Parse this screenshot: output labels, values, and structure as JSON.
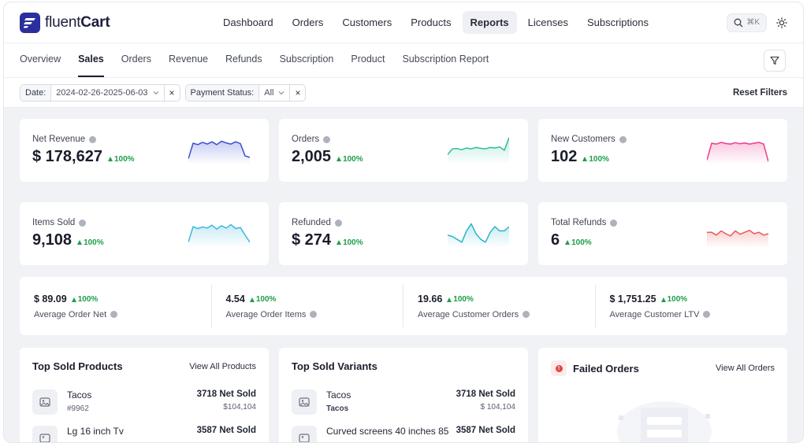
{
  "app": {
    "logo_text_regular": "fluent",
    "logo_text_bold": "Cart"
  },
  "nav": {
    "items": [
      {
        "label": "Dashboard",
        "active": false
      },
      {
        "label": "Orders",
        "active": false
      },
      {
        "label": "Customers",
        "active": false
      },
      {
        "label": "Products",
        "active": false
      },
      {
        "label": "Reports",
        "active": true
      },
      {
        "label": "Licenses",
        "active": false
      },
      {
        "label": "Subscriptions",
        "active": false
      }
    ],
    "search_shortcut": "⌘K"
  },
  "subnav": {
    "items": [
      {
        "label": "Overview",
        "active": false
      },
      {
        "label": "Sales",
        "active": true
      },
      {
        "label": "Orders",
        "active": false
      },
      {
        "label": "Revenue",
        "active": false
      },
      {
        "label": "Refunds",
        "active": false
      },
      {
        "label": "Subscription",
        "active": false
      },
      {
        "label": "Product",
        "active": false
      },
      {
        "label": "Subscription Report",
        "active": false
      }
    ]
  },
  "filters": {
    "date_label": "Date:",
    "date_value": "2024-02-26-2025-06-03",
    "payment_label": "Payment Status:",
    "payment_value": "All",
    "reset_label": "Reset Filters"
  },
  "kpis": [
    {
      "label": "Net Revenue",
      "value": "$ 178,627",
      "delta": "100%",
      "color": "#3b4fd1",
      "spark": [
        0.2,
        0.75,
        0.7,
        0.78,
        0.72,
        0.8,
        0.7,
        0.82,
        0.76,
        0.72,
        0.8,
        0.74,
        0.3,
        0.25
      ]
    },
    {
      "label": "Orders",
      "value": "2,005",
      "delta": "100%",
      "color": "#2bbf9a",
      "spark": [
        0.35,
        0.55,
        0.56,
        0.52,
        0.58,
        0.55,
        0.6,
        0.57,
        0.55,
        0.6,
        0.58,
        0.62,
        0.5,
        0.95
      ]
    },
    {
      "label": "New Customers",
      "value": "102",
      "delta": "100%",
      "color": "#e83e8c",
      "spark": [
        0.15,
        0.75,
        0.72,
        0.78,
        0.74,
        0.72,
        0.77,
        0.73,
        0.76,
        0.72,
        0.75,
        0.78,
        0.72,
        0.1
      ]
    },
    {
      "label": "Items Sold",
      "value": "9,108",
      "delta": "100%",
      "color": "#3fb8dd",
      "spark": [
        0.2,
        0.75,
        0.68,
        0.74,
        0.7,
        0.8,
        0.66,
        0.78,
        0.7,
        0.82,
        0.68,
        0.72,
        0.45,
        0.2
      ]
    },
    {
      "label": "Refunded",
      "value": "$ 274",
      "delta": "100%",
      "color": "#2ab6c9",
      "spark": [
        0.45,
        0.4,
        0.3,
        0.2,
        0.6,
        0.85,
        0.5,
        0.3,
        0.2,
        0.55,
        0.75,
        0.6,
        0.6,
        0.75
      ]
    },
    {
      "label": "Total Refunds",
      "value": "6",
      "delta": "100%",
      "color": "#e85a5a",
      "spark": [
        0.55,
        0.55,
        0.45,
        0.6,
        0.5,
        0.42,
        0.6,
        0.48,
        0.55,
        0.62,
        0.5,
        0.55,
        0.45,
        0.5
      ]
    }
  ],
  "stats": [
    {
      "value": "$ 89.09",
      "delta": "100%",
      "label": "Average Order Net"
    },
    {
      "value": "4.54",
      "delta": "100%",
      "label": "Average Order Items"
    },
    {
      "value": "19.66",
      "delta": "100%",
      "label": "Average Customer Orders"
    },
    {
      "value": "$ 1,751.25",
      "delta": "100%",
      "label": "Average Customer LTV"
    }
  ],
  "top_products": {
    "title": "Top Sold Products",
    "link": "View All Products",
    "items": [
      {
        "name": "Tacos",
        "sub": "#9962",
        "sold": "3718 Net Sold",
        "amount": "$104,104"
      },
      {
        "name": "Lg 16 inch Tv",
        "sub": "",
        "sold": "3587 Net Sold",
        "amount": ""
      }
    ]
  },
  "top_variants": {
    "title": "Top Sold Variants",
    "items": [
      {
        "name": "Tacos",
        "sub": "Tacos",
        "sold": "3718 Net Sold",
        "amount": "$ 104,104"
      },
      {
        "name": "Curved screens 40 inches 85",
        "sub": "",
        "sold": "3587 Net Sold",
        "amount": ""
      }
    ]
  },
  "failed_orders": {
    "title": "Failed Orders",
    "link": "View All Orders"
  }
}
